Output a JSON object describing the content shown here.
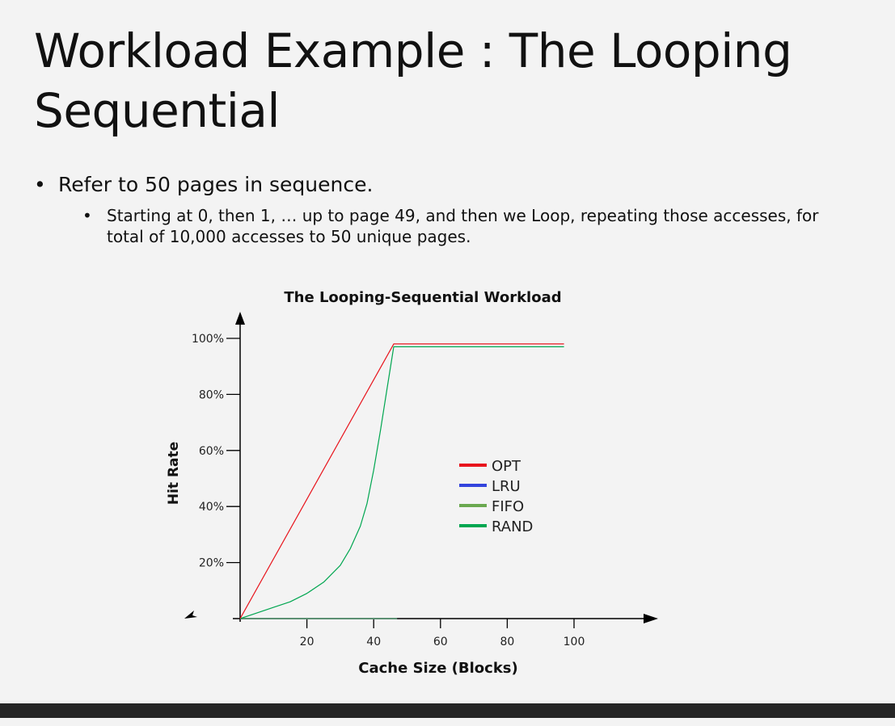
{
  "slide": {
    "title": "Workload Example : The Looping Sequential",
    "bullets": [
      {
        "text": "Refer to 50 pages in sequence.",
        "sub": [
          "Starting at 0, then 1, … up to page 49, and then we Loop, repeating those accesses, for total of 10,000 accesses to 50 unique pages."
        ]
      }
    ]
  },
  "chart_data": {
    "type": "line",
    "title": "The Looping-Sequential Workload",
    "xlabel": "Cache Size (Blocks)",
    "ylabel": "Hit Rate",
    "xlim": [
      0,
      100
    ],
    "ylim": [
      0,
      100
    ],
    "x_ticks": [
      20,
      40,
      60,
      80,
      100
    ],
    "y_ticks": [
      20,
      40,
      60,
      80,
      100
    ],
    "y_tick_labels": [
      "20%",
      "40%",
      "60%",
      "80%",
      "100%"
    ],
    "legend_position": "center",
    "series": [
      {
        "name": "OPT",
        "color": "#e8141c",
        "points": [
          [
            0,
            0
          ],
          [
            46,
            98
          ],
          [
            97,
            98
          ]
        ]
      },
      {
        "name": "LRU",
        "color": "#3344dd",
        "points": [
          [
            0,
            0
          ],
          [
            47,
            0
          ]
        ]
      },
      {
        "name": "FIFO",
        "color": "#6aa84f",
        "points": [
          [
            0,
            0
          ],
          [
            47,
            0
          ]
        ]
      },
      {
        "name": "RAND",
        "color": "#00a650",
        "points": [
          [
            0,
            0
          ],
          [
            5,
            2
          ],
          [
            10,
            4
          ],
          [
            15,
            6
          ],
          [
            20,
            9
          ],
          [
            25,
            13
          ],
          [
            30,
            19
          ],
          [
            33,
            25
          ],
          [
            36,
            33
          ],
          [
            38,
            41
          ],
          [
            40,
            53
          ],
          [
            42,
            67
          ],
          [
            44,
            82
          ],
          [
            46,
            97
          ],
          [
            50,
            97
          ],
          [
            60,
            97
          ],
          [
            70,
            97
          ],
          [
            80,
            97
          ],
          [
            90,
            97
          ],
          [
            97,
            97
          ]
        ]
      }
    ]
  }
}
